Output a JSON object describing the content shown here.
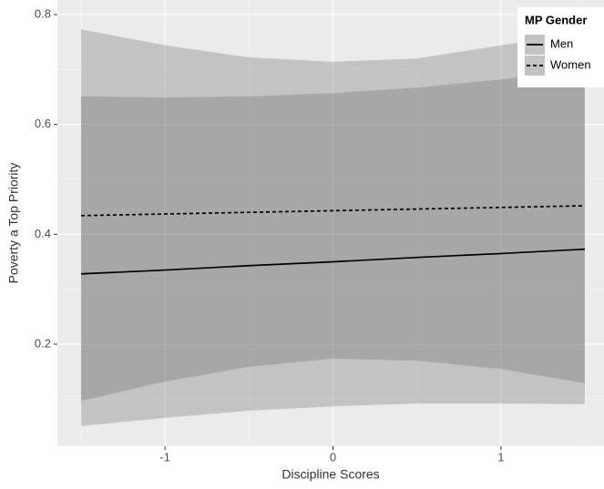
{
  "chart_data": {
    "type": "line_ribbon",
    "x_label": "Discipline Scores",
    "y_label": "Poverty a Top Priority",
    "legend_title": "MP Gender",
    "legend_position": "top-right",
    "x": [
      -1.5,
      -1,
      -0.5,
      0,
      0.5,
      1,
      1.5
    ],
    "series": [
      {
        "name": "Men",
        "color": "#000000",
        "linetype": "solid",
        "values": [
          0.328,
          0.335,
          0.343,
          0.35,
          0.358,
          0.365,
          0.373
        ],
        "lower": [
          0.051,
          0.066,
          0.079,
          0.087,
          0.092,
          0.092,
          0.091
        ],
        "upper": [
          0.651,
          0.649,
          0.651,
          0.657,
          0.667,
          0.682,
          0.702
        ]
      },
      {
        "name": "Women",
        "color": "#000000",
        "linetype": "dashed",
        "values": [
          0.434,
          0.437,
          0.44,
          0.443,
          0.446,
          0.449,
          0.452
        ],
        "lower": [
          0.097,
          0.132,
          0.159,
          0.174,
          0.17,
          0.155,
          0.129
        ],
        "upper": [
          0.773,
          0.744,
          0.722,
          0.714,
          0.72,
          0.744,
          0.765
        ]
      }
    ],
    "ribbon_color": "#666666",
    "ribbon_opacity": 0.3,
    "xlim": [
      -1.641,
      1.614
    ],
    "xticks": [
      -1,
      0,
      1
    ],
    "ylim": [
      0.0144,
      0.8265
    ],
    "yticks": [
      0.2,
      0.4,
      0.6,
      0.8
    ],
    "grid": true
  }
}
